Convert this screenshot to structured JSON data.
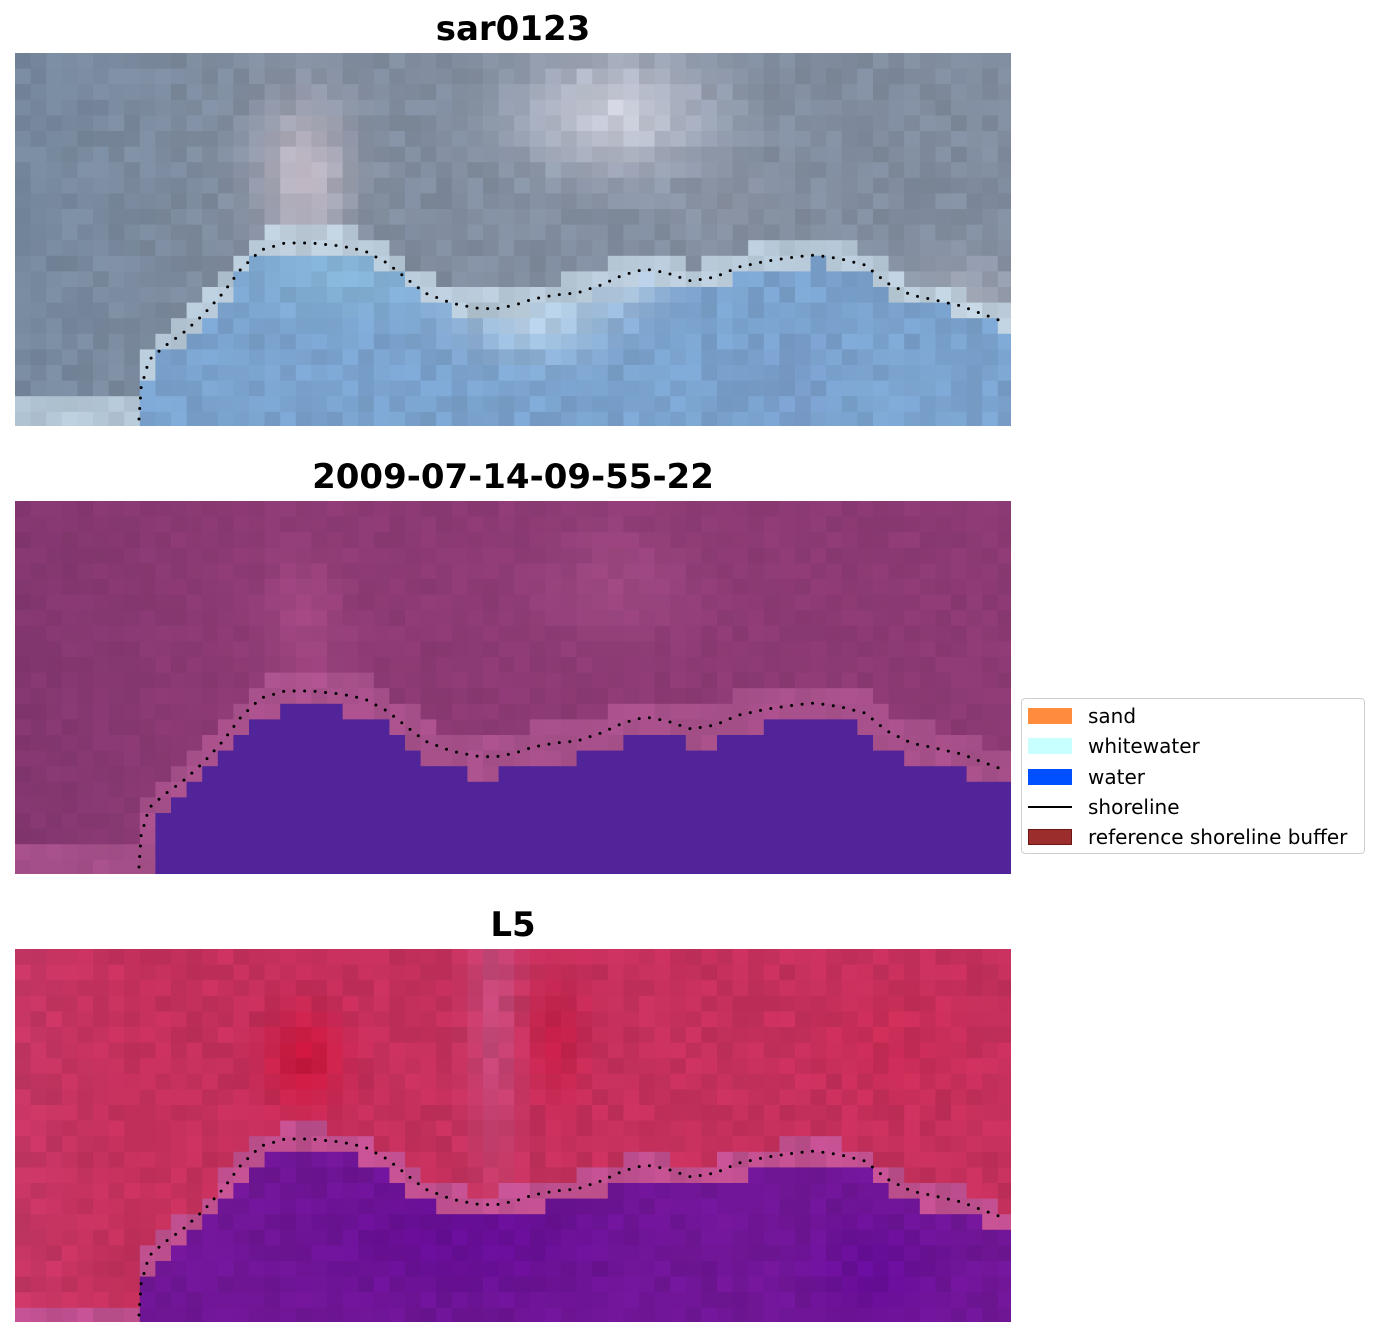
{
  "chart_data": [
    {
      "type": "heatmap",
      "title": "sar0123",
      "panel_style": "rgb",
      "shoreline_style": "dotted"
    },
    {
      "type": "heatmap",
      "title": "2009-07-14-09-55-22",
      "panel_style": "classified"
    },
    {
      "type": "heatmap",
      "title": "L5",
      "panel_style": "index"
    }
  ],
  "legend": {
    "placement": "center-right",
    "items": [
      {
        "label": "sand",
        "color": "#ff8c3c",
        "kind": "patch"
      },
      {
        "label": "whitewater",
        "color": "#c8ffff",
        "kind": "patch"
      },
      {
        "label": "water",
        "color": "#0050ff",
        "kind": "patch"
      },
      {
        "label": "shoreline",
        "color": "#000000",
        "kind": "line"
      },
      {
        "label": "reference shoreline buffer",
        "color": "#9b2d2d",
        "kind": "patch"
      }
    ]
  }
}
